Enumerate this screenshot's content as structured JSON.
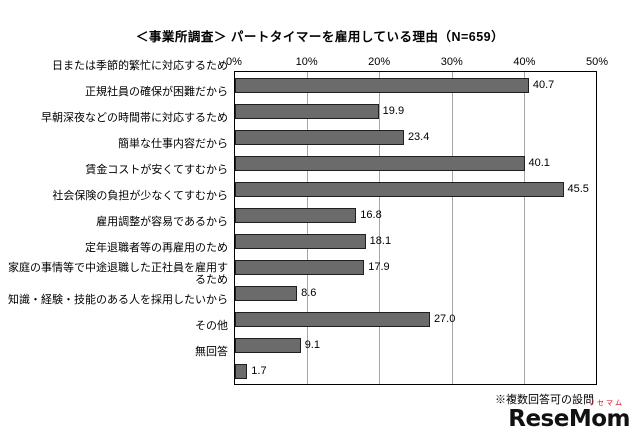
{
  "title": "＜事業所調査＞ パートタイマーを雇用している理由（N=659）",
  "footnote": "※複数回答可の設問",
  "logo": {
    "text": "ReseMom",
    "ruby": "リセマム"
  },
  "chart_data": {
    "type": "bar",
    "orientation": "horizontal",
    "title": "＜事業所調査＞ パートタイマーを雇用している理由（N=659）",
    "categories": [
      "日または季節的繁忙に対応するため",
      "正規社員の確保が困難だから",
      "早朝深夜などの時間帯に対応するため",
      "簡単な仕事内容だから",
      "賃金コストが安くてすむから",
      "社会保険の負担が少なくてすむから",
      "雇用調整が容易であるから",
      "定年退職者等の再雇用のため",
      "家庭の事情等で中途退職した正社員を雇用するため",
      "知識・経験・技能のある人を採用したいから",
      "その他",
      "無回答"
    ],
    "values": [
      40.7,
      19.9,
      23.4,
      40.1,
      45.5,
      16.8,
      18.1,
      17.9,
      8.6,
      27.0,
      9.1,
      1.7
    ],
    "value_labels": [
      "40.7",
      "19.9",
      "23.4",
      "40.1",
      "45.5",
      "16.8",
      "18.1",
      "17.9",
      "8.6",
      "27.0",
      "9.1",
      "1.7"
    ],
    "xlim": [
      0,
      50
    ],
    "x_ticks": [
      "0%",
      "10%",
      "20%",
      "30%",
      "40%",
      "50%"
    ],
    "bar_color": "#6b6b6b",
    "grid": true,
    "note": "※複数回答可の設問"
  }
}
